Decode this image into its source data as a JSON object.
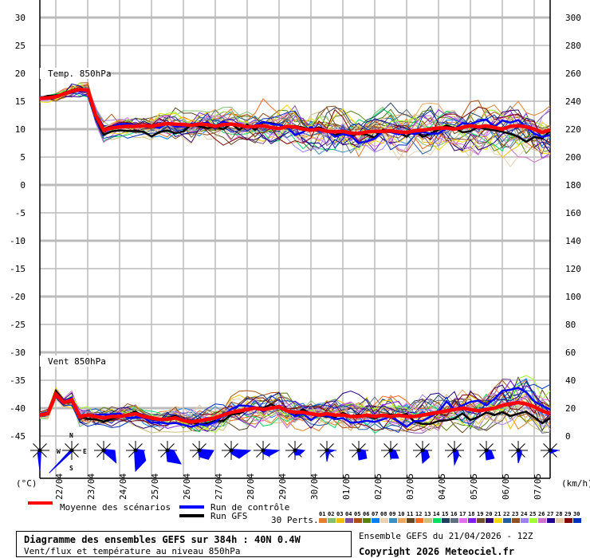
{
  "chart_data": {
    "type": "line",
    "title": "Diagramme des ensembles GEFS sur 384h : 40N 0.4W",
    "subtitle": "Vent/flux et température au niveau 850hPa",
    "run_info": "Ensemble GEFS du 21/04/2026 - 12Z",
    "copyright": "Copyright 2026 Meteociel.fr",
    "time_step_hours": 6,
    "x_dates": [
      "22/04",
      "23/04",
      "24/04",
      "25/04",
      "26/04",
      "27/04",
      "28/04",
      "29/04",
      "30/04",
      "01/05",
      "02/05",
      "03/05",
      "04/05",
      "05/05",
      "06/05",
      "07/05"
    ],
    "left_axis": {
      "unit": "(°C)",
      "ticks": [
        30,
        25,
        20,
        15,
        10,
        5,
        0,
        -5,
        -10,
        -15,
        -20,
        -25,
        -30,
        -35,
        -40,
        -45
      ],
      "ylim": [
        -45,
        30
      ]
    },
    "right_axis": {
      "unit": "(km/h)",
      "ticks": [
        300,
        280,
        260,
        240,
        220,
        200,
        180,
        160,
        140,
        120,
        100,
        80,
        60,
        40,
        20,
        0
      ],
      "ylim": [
        0,
        300
      ]
    },
    "panels": {
      "temperature": {
        "label": "Temp. 850hPa",
        "mean": [
          15.5,
          15.6,
          15.8,
          16.3,
          16.8,
          17.1,
          17.0,
          12.5,
          9.8,
          10.2,
          10.4,
          10.5,
          10.5,
          10.6,
          10.5,
          10.8,
          11.0,
          10.9,
          10.8,
          10.7,
          10.9,
          10.8,
          10.5,
          10.8,
          10.9,
          10.7,
          10.4,
          10.5,
          10.6,
          10.3,
          10.1,
          10.5,
          10.4,
          10.0,
          9.8,
          10.0,
          9.6,
          9.5,
          9.6,
          9.3,
          9.2,
          9.5,
          9.6,
          9.6,
          9.7,
          9.5,
          9.4,
          9.7,
          9.8,
          10.0,
          10.2,
          10.2,
          10.0,
          10.3,
          10.6,
          10.4,
          10.6,
          10.3,
          10.0,
          10.5,
          10.6,
          10.4,
          10.0,
          9.4,
          9.9
        ],
        "member_spread": [
          0.6,
          1.2,
          1.5,
          1.8,
          2.0,
          2.2,
          2.4,
          2.6,
          2.8,
          3.0,
          3.0,
          3.2,
          3.2,
          3.4,
          3.5,
          3.6,
          3.6
        ]
      },
      "wind": {
        "label": "Vent 850hPa",
        "mean": [
          15,
          16,
          30,
          24,
          26,
          14,
          15,
          14,
          13,
          14,
          14,
          15,
          16,
          14,
          13,
          12,
          12,
          13,
          11,
          10,
          11,
          12,
          13,
          15,
          17,
          18,
          19,
          20,
          19,
          20,
          21,
          18,
          17,
          17,
          16,
          15,
          16,
          15,
          15,
          14,
          14,
          15,
          14,
          15,
          14,
          15,
          14,
          14,
          15,
          16,
          17,
          18,
          19,
          20,
          19,
          18,
          19,
          20,
          22,
          23,
          24,
          23,
          21,
          18,
          16
        ],
        "member_spread": [
          3,
          6,
          5,
          5,
          6,
          7,
          8,
          9,
          9,
          9,
          10,
          11,
          11,
          12,
          13,
          14,
          14
        ]
      }
    },
    "wind_roses": [
      [
        0,
        0,
        0,
        0,
        26,
        4,
        0,
        0
      ],
      [
        0,
        0,
        0,
        0,
        0,
        40,
        0,
        0
      ],
      [
        0,
        0,
        14,
        22,
        0,
        0,
        0,
        0
      ],
      [
        0,
        0,
        10,
        18,
        26,
        0,
        0,
        0
      ],
      [
        0,
        0,
        8,
        24,
        14,
        0,
        0,
        0
      ],
      [
        0,
        0,
        18,
        16,
        8,
        0,
        0,
        0
      ],
      [
        0,
        0,
        24,
        14,
        4,
        0,
        0,
        0
      ],
      [
        0,
        0,
        20,
        10,
        4,
        0,
        0,
        0
      ],
      [
        0,
        0,
        12,
        8,
        6,
        0,
        0,
        0
      ],
      [
        0,
        0,
        10,
        4,
        14,
        0,
        0,
        0
      ],
      [
        0,
        0,
        8,
        14,
        12,
        0,
        0,
        0
      ],
      [
        0,
        0,
        6,
        14,
        10,
        0,
        0,
        0
      ],
      [
        0,
        0,
        6,
        12,
        16,
        0,
        0,
        0
      ],
      [
        0,
        0,
        4,
        8,
        18,
        0,
        0,
        0
      ],
      [
        0,
        0,
        6,
        14,
        12,
        0,
        0,
        0
      ],
      [
        0,
        0,
        4,
        6,
        16,
        0,
        0,
        0
      ],
      [
        0,
        0,
        10,
        4,
        4,
        0,
        0,
        0
      ]
    ],
    "compass": {
      "n": "N",
      "s": "S",
      "e": "E",
      "w": "W"
    },
    "legend": {
      "mean": {
        "label": "Moyenne des scénarios",
        "color": "#ff0000"
      },
      "control": {
        "label": "Run de contrôle",
        "color": "#0000ff"
      },
      "gfs": {
        "label": "Run GFS",
        "color": "#000000"
      },
      "perts_label": "30 Perts.",
      "perts": [
        {
          "id": "01",
          "color": "#e07f30"
        },
        {
          "id": "02",
          "color": "#80c070"
        },
        {
          "id": "03",
          "color": "#f0c000"
        },
        {
          "id": "04",
          "color": "#8050a0"
        },
        {
          "id": "05",
          "color": "#b05010"
        },
        {
          "id": "06",
          "color": "#5a8010"
        },
        {
          "id": "07",
          "color": "#0080ff"
        },
        {
          "id": "08",
          "color": "#e8d0b0"
        },
        {
          "id": "09",
          "color": "#3c90c0"
        },
        {
          "id": "10",
          "color": "#e8a860"
        },
        {
          "id": "11",
          "color": "#604820"
        },
        {
          "id": "12",
          "color": "#ff6820"
        },
        {
          "id": "13",
          "color": "#d0c080"
        },
        {
          "id": "14",
          "color": "#00e060"
        },
        {
          "id": "15",
          "color": "#204060"
        },
        {
          "id": "16",
          "color": "#607080"
        },
        {
          "id": "17",
          "color": "#e070f0"
        },
        {
          "id": "18",
          "color": "#8020f0"
        },
        {
          "id": "19",
          "color": "#705030"
        },
        {
          "id": "20",
          "color": "#300070"
        },
        {
          "id": "21",
          "color": "#f0d800"
        },
        {
          "id": "22",
          "color": "#2060a0"
        },
        {
          "id": "23",
          "color": "#905020"
        },
        {
          "id": "24",
          "color": "#a080f0"
        },
        {
          "id": "25",
          "color": "#a0ff30"
        },
        {
          "id": "26",
          "color": "#d070d0"
        },
        {
          "id": "27",
          "color": "#200090"
        },
        {
          "id": "28",
          "color": "#e0c8a0"
        },
        {
          "id": "29",
          "color": "#800000"
        },
        {
          "id": "30",
          "color": "#0030c0"
        }
      ]
    }
  }
}
